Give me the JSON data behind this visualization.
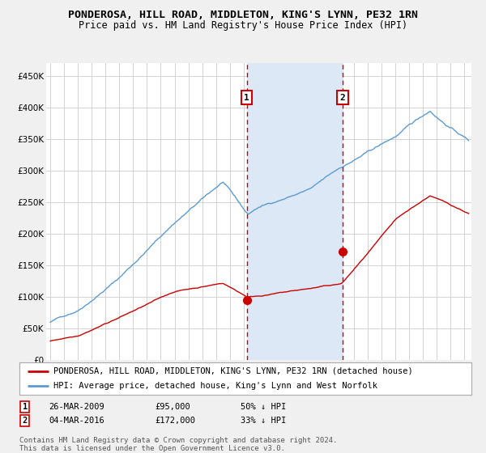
{
  "title": "PONDEROSA, HILL ROAD, MIDDLETON, KING'S LYNN, PE32 1RN",
  "subtitle": "Price paid vs. HM Land Registry's House Price Index (HPI)",
  "ylim": [
    0,
    470000
  ],
  "yticks": [
    0,
    50000,
    100000,
    150000,
    200000,
    250000,
    300000,
    350000,
    400000,
    450000
  ],
  "xlim_start": 1994.7,
  "xlim_end": 2025.5,
  "background_color": "#f0f0f0",
  "plot_bg_color": "#ffffff",
  "grid_color": "#cccccc",
  "hpi_color": "#5b9bd5",
  "property_color": "#cc0000",
  "shade_color": "#dce8f5",
  "dashed_line_color": "#cc0000",
  "point1_date": 2009.23,
  "point1_value": 95000,
  "point1_label": "26-MAR-2009",
  "point1_price": "£95,000",
  "point1_hpi": "50% ↓ HPI",
  "point2_date": 2016.17,
  "point2_value": 172000,
  "point2_label": "04-MAR-2016",
  "point2_price": "£172,000",
  "point2_hpi": "33% ↓ HPI",
  "legend_line1": "PONDEROSA, HILL ROAD, MIDDLETON, KING'S LYNN, PE32 1RN (detached house)",
  "legend_line2": "HPI: Average price, detached house, King's Lynn and West Norfolk",
  "footnote": "Contains HM Land Registry data © Crown copyright and database right 2024.\nThis data is licensed under the Open Government Licence v3.0.",
  "title_fontsize": 9.5,
  "subtitle_fontsize": 8.5,
  "tick_fontsize": 7.5,
  "legend_fontsize": 7.5,
  "footnote_fontsize": 6.5
}
